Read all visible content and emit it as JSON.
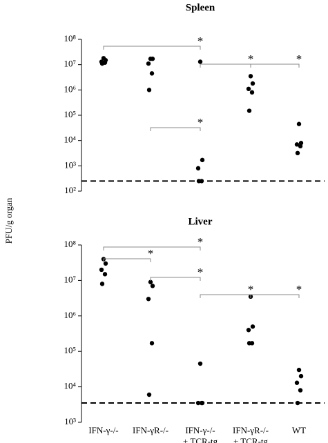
{
  "ylabel": "PFU/g organ",
  "chart_data": [
    {
      "type": "scatter",
      "title": "Spleen",
      "log_scale": true,
      "color": "#000000",
      "ylim": [
        100,
        100000000
      ],
      "yticks": [
        {
          "value": 100,
          "label": "10²"
        },
        {
          "value": 1000,
          "label": "10³"
        },
        {
          "value": 10000,
          "label": "10⁴"
        },
        {
          "value": 100000,
          "label": "10⁵"
        },
        {
          "value": 1000000,
          "label": "10⁶"
        },
        {
          "value": 10000000,
          "label": "10⁷"
        },
        {
          "value": 100000000,
          "label": "10⁸"
        }
      ],
      "detection_limit": 250,
      "series": [
        {
          "values": [
            18000000,
            15000000,
            13000000,
            12000000,
            11000000
          ]
        },
        {
          "values": [
            17000000,
            17000000,
            11000000,
            4500000,
            1000000
          ]
        },
        {
          "values": [
            13000000,
            1700,
            800,
            250,
            250
          ]
        },
        {
          "values": [
            3500000,
            1800000,
            1100000,
            800000,
            150000
          ]
        },
        {
          "values": [
            45000,
            8000,
            7000,
            6000,
            3200
          ]
        }
      ],
      "comparisons": [
        {
          "from": 0,
          "to": 2,
          "label": "*"
        },
        {
          "from": 2,
          "to": 3,
          "label": "*"
        },
        {
          "from": 3,
          "to": 4,
          "label": "*"
        },
        {
          "from": 1,
          "to": 2,
          "label": "*"
        }
      ]
    },
    {
      "type": "scatter",
      "title": "Liver",
      "log_scale": true,
      "color": "#000000",
      "categories": [
        "IFN-γ-/-",
        "IFN-γR-/-",
        "IFN-γ-/-\n+ TCR-tg",
        "IFN-γR-/-\n+ TCR-tg",
        "WT"
      ],
      "ylim": [
        1000,
        100000000
      ],
      "yticks": [
        {
          "value": 1000,
          "label": "10³"
        },
        {
          "value": 10000,
          "label": "10⁴"
        },
        {
          "value": 100000,
          "label": "10⁵"
        },
        {
          "value": 1000000,
          "label": "10⁶"
        },
        {
          "value": 10000000,
          "label": "10⁷"
        },
        {
          "value": 100000000,
          "label": "10⁸"
        }
      ],
      "detection_limit": 3500,
      "series": [
        {
          "values": [
            40000000,
            30000000,
            20000000,
            15000000,
            8000000
          ]
        },
        {
          "values": [
            9000000,
            7000000,
            3000000,
            170000,
            6000
          ]
        },
        {
          "values": [
            45000,
            3500,
            3500,
            3500
          ]
        },
        {
          "values": [
            3500000,
            500000,
            400000,
            170000,
            170000
          ]
        },
        {
          "values": [
            30000,
            20000,
            13000,
            8000,
            3500
          ]
        }
      ],
      "comparisons": [
        {
          "from": 0,
          "to": 2,
          "label": "*"
        },
        {
          "from": 0,
          "to": 1,
          "label": "*"
        },
        {
          "from": 1,
          "to": 2,
          "label": "*"
        },
        {
          "from": 2,
          "to": 3,
          "label": "*"
        },
        {
          "from": 3,
          "to": 4,
          "label": "*"
        }
      ]
    }
  ]
}
